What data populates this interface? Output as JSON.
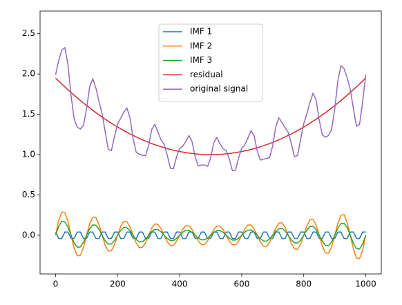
{
  "chart_data": {
    "type": "line",
    "x": [
      0,
      10,
      20,
      30,
      40,
      50,
      60,
      70,
      80,
      90,
      100,
      110,
      120,
      130,
      140,
      150,
      160,
      170,
      180,
      190,
      200,
      210,
      220,
      230,
      240,
      250,
      260,
      270,
      280,
      290,
      300,
      310,
      320,
      330,
      340,
      350,
      360,
      370,
      380,
      390,
      400,
      410,
      420,
      430,
      440,
      450,
      460,
      470,
      480,
      490,
      500,
      510,
      520,
      530,
      540,
      550,
      560,
      570,
      580,
      590,
      600,
      610,
      620,
      630,
      640,
      650,
      660,
      670,
      680,
      690,
      700,
      710,
      720,
      730,
      740,
      750,
      760,
      770,
      780,
      790,
      800,
      810,
      820,
      830,
      840,
      850,
      860,
      870,
      880,
      890,
      900,
      910,
      920,
      930,
      940,
      950,
      960,
      970,
      980,
      990,
      1000
    ],
    "series": [
      {
        "name": "IMF 1",
        "color": "#1f77b4",
        "values": [
          0.04,
          -0.04,
          -0.04,
          0.04,
          0.04,
          -0.04,
          -0.04,
          0.04,
          0.04,
          -0.04,
          -0.04,
          0.04,
          0.04,
          -0.04,
          -0.04,
          0.04,
          0.04,
          -0.04,
          -0.04,
          0.04,
          0.04,
          -0.04,
          -0.04,
          0.04,
          0.04,
          -0.04,
          -0.04,
          0.04,
          0.04,
          -0.04,
          -0.04,
          0.04,
          0.04,
          -0.04,
          -0.04,
          0.04,
          0.04,
          -0.04,
          -0.04,
          0.04,
          0.04,
          -0.04,
          -0.04,
          0.04,
          0.04,
          -0.04,
          -0.04,
          0.04,
          0.04,
          -0.04,
          -0.04,
          0.04,
          0.04,
          -0.04,
          -0.04,
          0.04,
          0.04,
          -0.04,
          -0.04,
          0.04,
          0.04,
          -0.04,
          -0.04,
          0.04,
          0.04,
          -0.04,
          -0.04,
          0.04,
          0.04,
          -0.04,
          -0.04,
          0.04,
          0.04,
          -0.04,
          -0.04,
          0.04,
          0.04,
          -0.04,
          -0.04,
          0.04,
          0.04,
          -0.04,
          -0.04,
          0.04,
          0.04,
          -0.04,
          -0.04,
          0.04,
          0.04,
          -0.04,
          -0.04,
          0.04,
          0.04,
          -0.04,
          -0.04,
          0.04,
          0.04,
          -0.04,
          -0.04,
          0.04,
          0.04
        ]
      },
      {
        "name": "IMF 2",
        "color": "#ff7f0e",
        "values": [
          0,
          0.183,
          0.289,
          0.282,
          0.17,
          0,
          -0.162,
          -0.255,
          -0.248,
          -0.149,
          0,
          0.142,
          0.224,
          0.219,
          0.132,
          0,
          -0.125,
          -0.197,
          -0.192,
          -0.116,
          0,
          0.11,
          0.174,
          0.169,
          0.102,
          0,
          -0.098,
          -0.154,
          -0.151,
          -0.091,
          0,
          0.088,
          0.139,
          0.136,
          0.082,
          0,
          -0.08,
          -0.127,
          -0.126,
          -0.076,
          0,
          0.074,
          0.119,
          0.118,
          0.072,
          0,
          -0.071,
          -0.115,
          -0.114,
          -0.071,
          0,
          0.071,
          0.114,
          0.115,
          0.071,
          0,
          -0.072,
          -0.118,
          -0.119,
          -0.074,
          0,
          0.076,
          0.126,
          0.127,
          0.08,
          0,
          -0.082,
          -0.136,
          -0.139,
          -0.088,
          0,
          0.091,
          0.151,
          0.154,
          0.098,
          0,
          -0.102,
          -0.169,
          -0.174,
          -0.11,
          0,
          0.116,
          0.192,
          0.197,
          0.125,
          0,
          -0.132,
          -0.219,
          -0.224,
          -0.142,
          0,
          0.149,
          0.248,
          0.255,
          0.162,
          0,
          -0.17,
          -0.282,
          -0.289,
          -0.183,
          0
        ]
      },
      {
        "name": "IMF 3",
        "color": "#2ca02c",
        "values": [
          0,
          0.109,
          0.171,
          0.166,
          0.1,
          0,
          -0.095,
          -0.148,
          -0.145,
          -0.086,
          0,
          0.082,
          0.128,
          0.125,
          0.075,
          0,
          -0.071,
          -0.111,
          -0.107,
          -0.065,
          0,
          0.061,
          0.096,
          0.093,
          0.056,
          0,
          -0.053,
          -0.084,
          -0.081,
          -0.049,
          0,
          0.046,
          0.073,
          0.071,
          0.043,
          0,
          -0.041,
          -0.066,
          -0.064,
          -0.039,
          0,
          0.038,
          0.06,
          0.06,
          0.036,
          0,
          -0.036,
          -0.057,
          -0.057,
          -0.035,
          0,
          0.035,
          0.057,
          0.057,
          0.036,
          0,
          -0.036,
          -0.06,
          -0.06,
          -0.038,
          0,
          0.039,
          0.064,
          0.066,
          0.041,
          0,
          -0.043,
          -0.071,
          -0.073,
          -0.046,
          0,
          0.049,
          0.081,
          0.084,
          0.053,
          0,
          -0.056,
          -0.093,
          -0.096,
          -0.061,
          0,
          0.065,
          0.107,
          0.111,
          0.071,
          0,
          -0.075,
          -0.125,
          -0.128,
          -0.082,
          0,
          0.086,
          0.145,
          0.148,
          0.095,
          0,
          -0.1,
          -0.166,
          -0.171,
          -0.109,
          0
        ]
      },
      {
        "name": "residual",
        "color": "#d62728",
        "values": [
          1.95,
          1.912,
          1.876,
          1.839,
          1.804,
          1.77,
          1.736,
          1.703,
          1.67,
          1.639,
          1.608,
          1.578,
          1.549,
          1.52,
          1.492,
          1.466,
          1.439,
          1.414,
          1.389,
          1.365,
          1.342,
          1.32,
          1.298,
          1.277,
          1.257,
          1.238,
          1.219,
          1.201,
          1.184,
          1.168,
          1.152,
          1.137,
          1.123,
          1.11,
          1.097,
          1.086,
          1.074,
          1.064,
          1.055,
          1.046,
          1.038,
          1.031,
          1.024,
          1.019,
          1.014,
          1.01,
          1.006,
          1.003,
          1.002,
          1.0,
          1.0,
          1.0,
          1.002,
          1.003,
          1.006,
          1.01,
          1.014,
          1.019,
          1.024,
          1.031,
          1.038,
          1.046,
          1.055,
          1.064,
          1.074,
          1.086,
          1.097,
          1.11,
          1.123,
          1.137,
          1.152,
          1.168,
          1.184,
          1.201,
          1.219,
          1.238,
          1.257,
          1.277,
          1.298,
          1.32,
          1.342,
          1.365,
          1.389,
          1.414,
          1.439,
          1.466,
          1.492,
          1.52,
          1.549,
          1.578,
          1.608,
          1.639,
          1.67,
          1.703,
          1.736,
          1.77,
          1.804,
          1.839,
          1.876,
          1.912,
          1.95
        ]
      },
      {
        "name": "original signal",
        "color": "#9467bd",
        "values": [
          1.99,
          2.164,
          2.296,
          2.327,
          2.114,
          1.73,
          1.439,
          1.34,
          1.317,
          1.364,
          1.568,
          1.842,
          1.941,
          1.824,
          1.659,
          1.506,
          1.283,
          1.066,
          1.05,
          1.224,
          1.382,
          1.451,
          1.528,
          1.579,
          1.455,
          1.198,
          1.028,
          1.003,
          0.992,
          0.988,
          1.112,
          1.311,
          1.375,
          1.277,
          1.182,
          1.126,
          0.993,
          0.831,
          0.825,
          0.971,
          1.078,
          1.103,
          1.163,
          1.237,
          1.162,
          0.97,
          0.859,
          0.871,
          0.871,
          0.854,
          0.96,
          1.146,
          1.213,
          1.135,
          1.073,
          1.05,
          0.946,
          0.801,
          0.805,
          0.959,
          1.078,
          1.121,
          1.205,
          1.297,
          1.235,
          1.046,
          0.932,
          0.943,
          0.951,
          0.963,
          1.112,
          1.348,
          1.456,
          1.399,
          1.33,
          1.278,
          1.139,
          0.975,
          0.988,
          1.189,
          1.382,
          1.506,
          1.648,
          1.762,
          1.675,
          1.426,
          1.245,
          1.216,
          1.237,
          1.314,
          1.568,
          1.914,
          2.103,
          2.066,
          1.953,
          1.81,
          1.574,
          1.351,
          1.376,
          1.66,
          1.99
        ]
      }
    ],
    "xlim": [
      -50,
      1050
    ],
    "xticks": [
      0,
      200,
      400,
      600,
      800,
      1000
    ],
    "ylim": [
      -0.48,
      2.78
    ],
    "yticks": [
      {
        "value": 0,
        "label": "0.0"
      },
      0.5,
      {
        "value": 1,
        "label": "1.0"
      },
      1.5,
      {
        "value": 2,
        "label": "2.0"
      },
      2.5
    ],
    "legend": "upper center",
    "grid": false
  }
}
